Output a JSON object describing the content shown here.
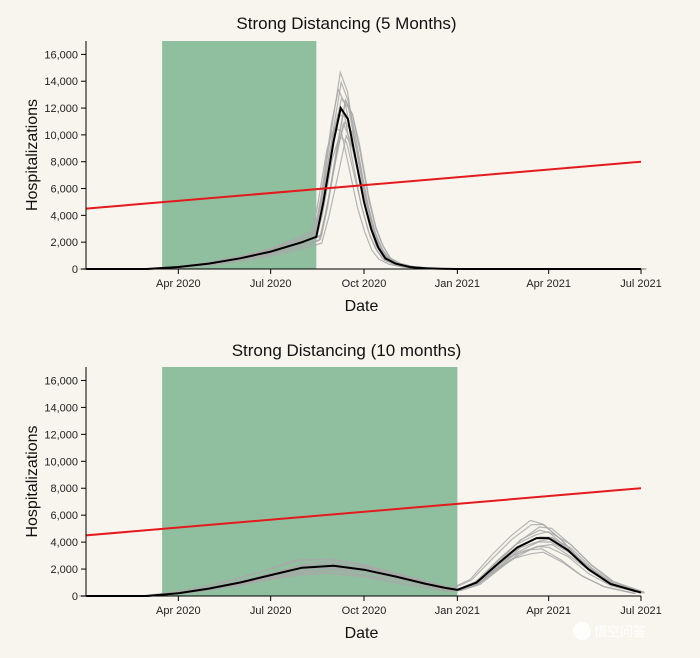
{
  "watermark": "悟空问答",
  "colors": {
    "shade": "#8fbf9f",
    "reference_line": "#e41a1c",
    "ensemble": "#a8a8a8",
    "median": "#000000",
    "background": "#f8f5ee"
  },
  "chart_data": [
    {
      "type": "line",
      "title": "Strong Distancing (5 Months)",
      "xlabel": "Date",
      "ylabel": "Hospitalizations",
      "x_ticks": [
        "Apr 2020",
        "Jul 2020",
        "Oct 2020",
        "Jan 2021",
        "Apr 2021",
        "Jul 2021"
      ],
      "y_ticks": [
        "0",
        "2,000",
        "4,000",
        "6,000",
        "8,000",
        "10,000",
        "12,000",
        "14,000",
        "16,000"
      ],
      "xlim": [
        "2020-01-01",
        "2021-07-01"
      ],
      "ylim": [
        0,
        17000
      ],
      "grid": false,
      "shaded_period": [
        "2020-03-16",
        "2020-08-15"
      ],
      "reference_line": {
        "x": [
          "2020-01-01",
          "2021-07-01"
        ],
        "y": [
          4500,
          8000
        ]
      },
      "median": {
        "x": [
          "2020-01-01",
          "2020-03-01",
          "2020-04-01",
          "2020-05-01",
          "2020-06-01",
          "2020-07-01",
          "2020-08-01",
          "2020-08-15",
          "2020-08-22",
          "2020-09-01",
          "2020-09-08",
          "2020-09-15",
          "2020-09-22",
          "2020-10-01",
          "2020-10-08",
          "2020-10-15",
          "2020-10-22",
          "2020-11-01",
          "2020-11-15",
          "2020-12-01",
          "2020-12-15",
          "2021-01-01",
          "2021-07-01"
        ],
        "y": [
          0,
          0,
          150,
          400,
          800,
          1300,
          2000,
          2400,
          5000,
          9500,
          12000,
          11200,
          8500,
          5000,
          3000,
          1600,
          800,
          400,
          150,
          60,
          20,
          0,
          0
        ]
      },
      "ensemble_peak_range": [
        9600,
        14300
      ],
      "ensemble_count": 12
    },
    {
      "type": "line",
      "title": "Strong Distancing (10 months)",
      "xlabel": "Date",
      "ylabel": "Hospitalizations",
      "x_ticks": [
        "Apr 2020",
        "Jul 2020",
        "Oct 2020",
        "Jan 2021",
        "Apr 2021",
        "Jul 2021"
      ],
      "y_ticks": [
        "0",
        "2,000",
        "4,000",
        "6,000",
        "8,000",
        "10,000",
        "12,000",
        "14,000",
        "16,000"
      ],
      "xlim": [
        "2020-01-01",
        "2021-07-01"
      ],
      "ylim": [
        0,
        17000
      ],
      "grid": false,
      "shaded_period": [
        "2020-03-16",
        "2021-01-01"
      ],
      "reference_line": {
        "x": [
          "2020-01-01",
          "2021-07-01"
        ],
        "y": [
          4500,
          8000
        ]
      },
      "median": {
        "x": [
          "2020-01-01",
          "2020-03-01",
          "2020-04-01",
          "2020-05-01",
          "2020-06-01",
          "2020-07-01",
          "2020-08-01",
          "2020-09-01",
          "2020-10-01",
          "2020-11-01",
          "2020-12-01",
          "2020-12-20",
          "2021-01-01",
          "2021-01-20",
          "2021-02-10",
          "2021-03-01",
          "2021-03-20",
          "2021-04-01",
          "2021-04-20",
          "2021-05-10",
          "2021-06-01",
          "2021-07-01"
        ],
        "y": [
          0,
          0,
          200,
          550,
          1000,
          1550,
          2100,
          2250,
          1950,
          1450,
          900,
          600,
          450,
          1000,
          2400,
          3600,
          4300,
          4300,
          3400,
          2000,
          900,
          250
        ]
      },
      "ensemble_peak_range": [
        3200,
        5400
      ],
      "ensemble_count": 12
    }
  ]
}
